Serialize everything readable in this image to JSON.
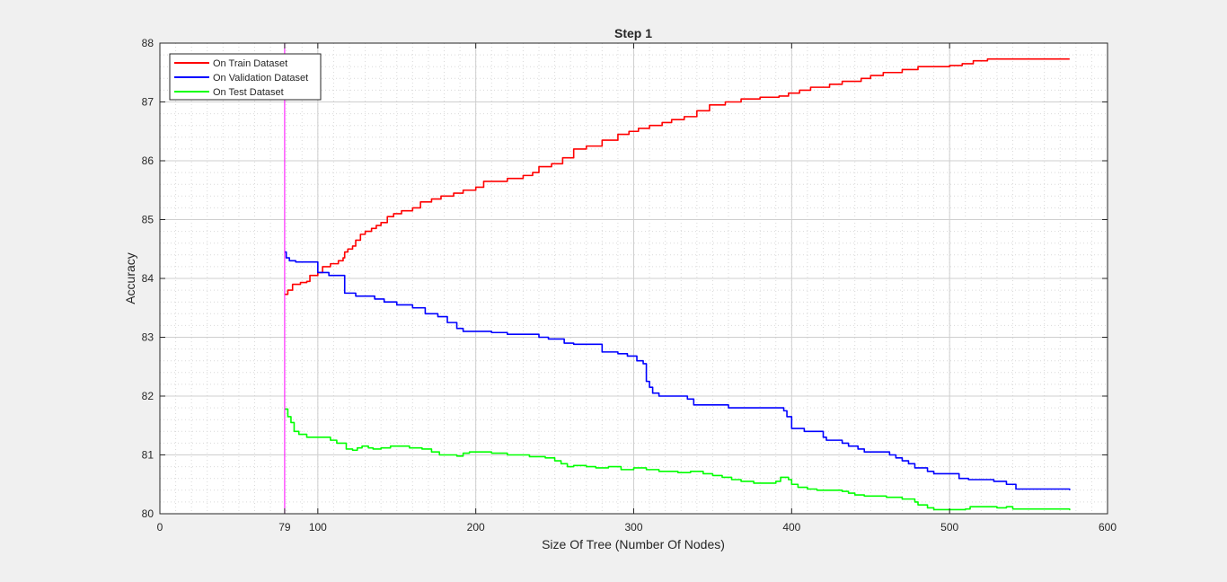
{
  "chart_data": {
    "type": "line",
    "title": "Step 1",
    "xlabel": "Size Of Tree (Number Of Nodes)",
    "ylabel": "Accuracy",
    "xlim": [
      0,
      600
    ],
    "ylim": [
      80,
      88
    ],
    "xticks": [
      0,
      79,
      100,
      200,
      300,
      400,
      500,
      600
    ],
    "xtick_labels": [
      "0",
      "79",
      "100",
      "200",
      "300",
      "400",
      "500",
      "600"
    ],
    "yticks": [
      80,
      81,
      82,
      83,
      84,
      85,
      86,
      87,
      88
    ],
    "ytick_labels": [
      "80",
      "81",
      "82",
      "83",
      "84",
      "85",
      "86",
      "87",
      "88"
    ],
    "grid": true,
    "minor_grid": true,
    "legend_position": "top-left",
    "vline": {
      "x": 79,
      "color": "#ff00ff"
    },
    "series": [
      {
        "name": "On Train Dataset",
        "color": "#ff0000",
        "step": true,
        "points": [
          [
            79,
            83.73
          ],
          [
            81,
            83.8
          ],
          [
            84,
            83.9
          ],
          [
            89,
            83.93
          ],
          [
            93,
            83.95
          ],
          [
            95,
            84.05
          ],
          [
            100,
            84.1
          ],
          [
            103,
            84.2
          ],
          [
            108,
            84.25
          ],
          [
            113,
            84.3
          ],
          [
            116,
            84.35
          ],
          [
            117,
            84.45
          ],
          [
            119,
            84.5
          ],
          [
            122,
            84.55
          ],
          [
            124,
            84.65
          ],
          [
            127,
            84.75
          ],
          [
            130,
            84.8
          ],
          [
            134,
            84.85
          ],
          [
            137,
            84.9
          ],
          [
            140,
            84.95
          ],
          [
            144,
            85.05
          ],
          [
            148,
            85.1
          ],
          [
            153,
            85.15
          ],
          [
            160,
            85.2
          ],
          [
            165,
            85.3
          ],
          [
            172,
            85.35
          ],
          [
            178,
            85.4
          ],
          [
            186,
            85.45
          ],
          [
            192,
            85.5
          ],
          [
            200,
            85.55
          ],
          [
            205,
            85.65
          ],
          [
            220,
            85.7
          ],
          [
            230,
            85.75
          ],
          [
            236,
            85.8
          ],
          [
            240,
            85.9
          ],
          [
            248,
            85.95
          ],
          [
            255,
            86.05
          ],
          [
            262,
            86.2
          ],
          [
            270,
            86.25
          ],
          [
            280,
            86.35
          ],
          [
            290,
            86.45
          ],
          [
            297,
            86.5
          ],
          [
            303,
            86.55
          ],
          [
            310,
            86.6
          ],
          [
            318,
            86.65
          ],
          [
            324,
            86.7
          ],
          [
            332,
            86.75
          ],
          [
            340,
            86.85
          ],
          [
            348,
            86.95
          ],
          [
            358,
            87.0
          ],
          [
            368,
            87.05
          ],
          [
            380,
            87.08
          ],
          [
            392,
            87.1
          ],
          [
            398,
            87.15
          ],
          [
            405,
            87.2
          ],
          [
            412,
            87.25
          ],
          [
            424,
            87.3
          ],
          [
            432,
            87.35
          ],
          [
            444,
            87.4
          ],
          [
            450,
            87.45
          ],
          [
            458,
            87.5
          ],
          [
            470,
            87.55
          ],
          [
            480,
            87.6
          ],
          [
            500,
            87.62
          ],
          [
            508,
            87.65
          ],
          [
            515,
            87.7
          ],
          [
            524,
            87.73
          ],
          [
            576,
            87.73
          ]
        ]
      },
      {
        "name": "On Validation Dataset",
        "color": "#0000ff",
        "step": true,
        "points": [
          [
            79,
            84.45
          ],
          [
            80,
            84.35
          ],
          [
            82,
            84.3
          ],
          [
            86,
            84.28
          ],
          [
            100,
            84.1
          ],
          [
            107,
            84.05
          ],
          [
            115,
            84.05
          ],
          [
            117,
            83.75
          ],
          [
            124,
            83.7
          ],
          [
            136,
            83.65
          ],
          [
            142,
            83.6
          ],
          [
            150,
            83.55
          ],
          [
            160,
            83.5
          ],
          [
            168,
            83.4
          ],
          [
            176,
            83.35
          ],
          [
            182,
            83.25
          ],
          [
            188,
            83.15
          ],
          [
            192,
            83.1
          ],
          [
            210,
            83.08
          ],
          [
            220,
            83.05
          ],
          [
            240,
            83.0
          ],
          [
            246,
            82.97
          ],
          [
            256,
            82.9
          ],
          [
            262,
            82.88
          ],
          [
            280,
            82.75
          ],
          [
            290,
            82.72
          ],
          [
            296,
            82.68
          ],
          [
            302,
            82.6
          ],
          [
            306,
            82.55
          ],
          [
            308,
            82.25
          ],
          [
            310,
            82.15
          ],
          [
            312,
            82.05
          ],
          [
            316,
            82.0
          ],
          [
            334,
            81.95
          ],
          [
            338,
            81.85
          ],
          [
            360,
            81.8
          ],
          [
            395,
            81.75
          ],
          [
            397,
            81.65
          ],
          [
            400,
            81.45
          ],
          [
            408,
            81.4
          ],
          [
            420,
            81.3
          ],
          [
            422,
            81.25
          ],
          [
            432,
            81.2
          ],
          [
            436,
            81.15
          ],
          [
            442,
            81.1
          ],
          [
            446,
            81.05
          ],
          [
            462,
            81.0
          ],
          [
            466,
            80.95
          ],
          [
            470,
            80.9
          ],
          [
            474,
            80.85
          ],
          [
            478,
            80.78
          ],
          [
            486,
            80.72
          ],
          [
            490,
            80.68
          ],
          [
            506,
            80.6
          ],
          [
            512,
            80.58
          ],
          [
            528,
            80.55
          ],
          [
            536,
            80.5
          ],
          [
            542,
            80.42
          ],
          [
            576,
            80.4
          ]
        ]
      },
      {
        "name": "On Test Dataset",
        "color": "#00ff00",
        "step": true,
        "points": [
          [
            79,
            81.78
          ],
          [
            81,
            81.65
          ],
          [
            83,
            81.55
          ],
          [
            85,
            81.4
          ],
          [
            88,
            81.35
          ],
          [
            93,
            81.3
          ],
          [
            108,
            81.25
          ],
          [
            112,
            81.2
          ],
          [
            118,
            81.1
          ],
          [
            122,
            81.08
          ],
          [
            125,
            81.12
          ],
          [
            128,
            81.15
          ],
          [
            132,
            81.12
          ],
          [
            135,
            81.1
          ],
          [
            140,
            81.12
          ],
          [
            146,
            81.15
          ],
          [
            158,
            81.12
          ],
          [
            166,
            81.1
          ],
          [
            172,
            81.05
          ],
          [
            177,
            81.0
          ],
          [
            188,
            80.98
          ],
          [
            192,
            81.03
          ],
          [
            196,
            81.05
          ],
          [
            210,
            81.03
          ],
          [
            220,
            81.0
          ],
          [
            234,
            80.97
          ],
          [
            244,
            80.95
          ],
          [
            250,
            80.9
          ],
          [
            254,
            80.85
          ],
          [
            258,
            80.8
          ],
          [
            262,
            80.82
          ],
          [
            270,
            80.8
          ],
          [
            276,
            80.78
          ],
          [
            284,
            80.8
          ],
          [
            292,
            80.75
          ],
          [
            300,
            80.78
          ],
          [
            308,
            80.75
          ],
          [
            316,
            80.72
          ],
          [
            328,
            80.7
          ],
          [
            336,
            80.72
          ],
          [
            344,
            80.68
          ],
          [
            350,
            80.65
          ],
          [
            356,
            80.62
          ],
          [
            362,
            80.58
          ],
          [
            368,
            80.55
          ],
          [
            376,
            80.52
          ],
          [
            390,
            80.55
          ],
          [
            393,
            80.62
          ],
          [
            398,
            80.58
          ],
          [
            400,
            80.5
          ],
          [
            404,
            80.45
          ],
          [
            410,
            80.42
          ],
          [
            416,
            80.4
          ],
          [
            432,
            80.38
          ],
          [
            436,
            80.35
          ],
          [
            440,
            80.32
          ],
          [
            446,
            80.3
          ],
          [
            460,
            80.28
          ],
          [
            470,
            80.25
          ],
          [
            478,
            80.2
          ],
          [
            480,
            80.15
          ],
          [
            486,
            80.1
          ],
          [
            490,
            80.07
          ],
          [
            510,
            80.08
          ],
          [
            513,
            80.12
          ],
          [
            530,
            80.1
          ],
          [
            536,
            80.12
          ],
          [
            540,
            80.08
          ],
          [
            576,
            80.06
          ]
        ]
      }
    ]
  }
}
